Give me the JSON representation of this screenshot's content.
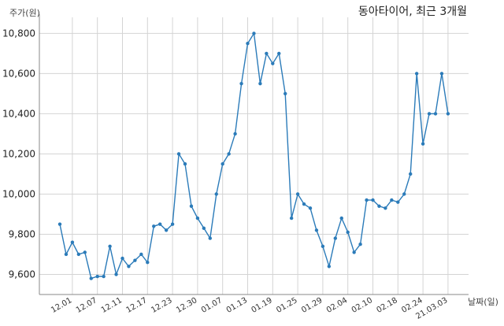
{
  "chart_data": {
    "type": "line",
    "title": "동아타이어, 최근 3개월",
    "ylabel": "주가(원)",
    "xlabel": "날짜(일)",
    "ylim": [
      9500,
      10880
    ],
    "yticks": [
      9600,
      9800,
      10000,
      10200,
      10400,
      10600,
      10800
    ],
    "ytick_labels": [
      "9,600",
      "9,800",
      "10,000",
      "10,200",
      "10,400",
      "10,600",
      "10,800"
    ],
    "xtick_labels": [
      "12.01",
      "12.07",
      "12.11",
      "12.17",
      "12.23",
      "12.30",
      "01.07",
      "01.13",
      "01.19",
      "01.25",
      "01.29",
      "02.04",
      "02.10",
      "02.18",
      "02.24",
      "21.03.03"
    ],
    "xtick_positions": [
      2,
      6,
      10,
      14,
      18,
      22,
      26,
      30,
      34,
      38,
      42,
      46,
      50,
      54,
      58,
      62
    ],
    "grid": true,
    "series_color": "#2b7bb9",
    "values": [
      9850,
      9700,
      9760,
      9700,
      9710,
      9580,
      9590,
      9590,
      9740,
      9600,
      9680,
      9640,
      9670,
      9700,
      9660,
      9840,
      9850,
      9820,
      9850,
      10200,
      10150,
      9940,
      9880,
      9830,
      9780,
      10000,
      10150,
      10200,
      10300,
      10550,
      10750,
      10800,
      10550,
      10700,
      10650,
      10700,
      10500,
      9880,
      10000,
      9950,
      9930,
      9820,
      9740,
      9640,
      9780,
      9880,
      9810,
      9710,
      9750,
      9970,
      9970,
      9940,
      9930,
      9970,
      9960,
      10000,
      10100,
      10600,
      10250,
      10400,
      10400,
      10600,
      10400
    ]
  }
}
